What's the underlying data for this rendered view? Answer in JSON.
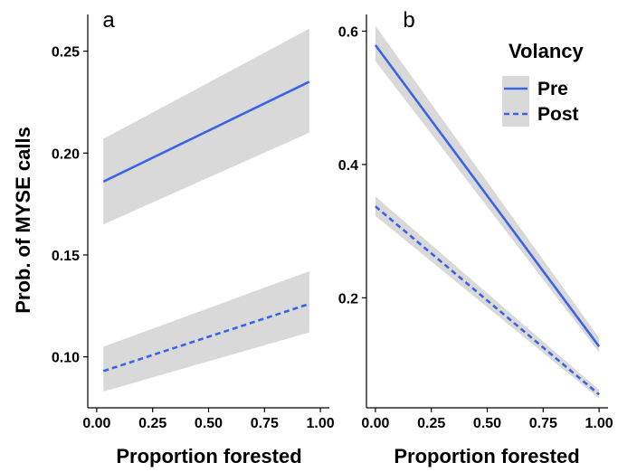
{
  "chart_data": [
    {
      "panel": "a",
      "type": "line",
      "xlabel": "Proportion forested",
      "ylabel": "Prob. of MYSE calls",
      "xlim": [
        -0.04,
        1.04
      ],
      "ylim": [
        0.075,
        0.268
      ],
      "xticks": [
        0.0,
        0.25,
        0.5,
        0.75,
        1.0
      ],
      "xtick_labels": [
        "0.00",
        "0.25",
        "0.50",
        "0.75",
        "1.00"
      ],
      "yticks": [
        0.1,
        0.15,
        0.2,
        0.25
      ],
      "ytick_labels": [
        "0.10",
        "0.15",
        "0.20",
        "0.25"
      ],
      "grid": false,
      "series": [
        {
          "name": "Pre",
          "style": "solid",
          "color": "#3a63e8",
          "x": [
            0.03,
            0.95
          ],
          "y": [
            0.186,
            0.235
          ],
          "ci_lower": [
            0.165,
            0.21
          ],
          "ci_upper": [
            0.207,
            0.261
          ],
          "ci_color": "#d9d9d9"
        },
        {
          "name": "Post",
          "style": "dashed",
          "color": "#3a63e8",
          "x": [
            0.03,
            0.95
          ],
          "y": [
            0.093,
            0.126
          ],
          "ci_lower": [
            0.083,
            0.112
          ],
          "ci_upper": [
            0.105,
            0.142
          ],
          "ci_color": "#d9d9d9"
        }
      ]
    },
    {
      "panel": "b",
      "type": "line",
      "xlabel": "Proportion forested",
      "ylabel": "",
      "xlim": [
        -0.04,
        1.04
      ],
      "ylim": [
        0.035,
        0.625
      ],
      "xticks": [
        0.0,
        0.25,
        0.5,
        0.75,
        1.0
      ],
      "xtick_labels": [
        "0.00",
        "0.25",
        "0.50",
        "0.75",
        "1.00"
      ],
      "yticks": [
        0.2,
        0.4,
        0.6
      ],
      "ytick_labels": [
        "0.2",
        "0.4",
        "0.6"
      ],
      "grid": false,
      "legend": {
        "title": "Volancy",
        "position": "top-right",
        "entries": [
          {
            "label": "Pre",
            "style": "solid"
          },
          {
            "label": "Post",
            "style": "dashed"
          }
        ]
      },
      "series": [
        {
          "name": "Pre",
          "style": "solid",
          "color": "#3a63e8",
          "x": [
            0.0,
            1.0
          ],
          "y": [
            0.579,
            0.127
          ],
          "ci_lower": [
            0.555,
            0.118
          ],
          "ci_upper": [
            0.608,
            0.14
          ],
          "ci_color": "#d9d9d9"
        },
        {
          "name": "Post",
          "style": "dashed",
          "color": "#3a63e8",
          "x": [
            0.0,
            1.0
          ],
          "y": [
            0.337,
            0.055
          ],
          "ci_lower": [
            0.323,
            0.049
          ],
          "ci_upper": [
            0.352,
            0.062
          ],
          "ci_color": "#d9d9d9"
        }
      ]
    }
  ]
}
